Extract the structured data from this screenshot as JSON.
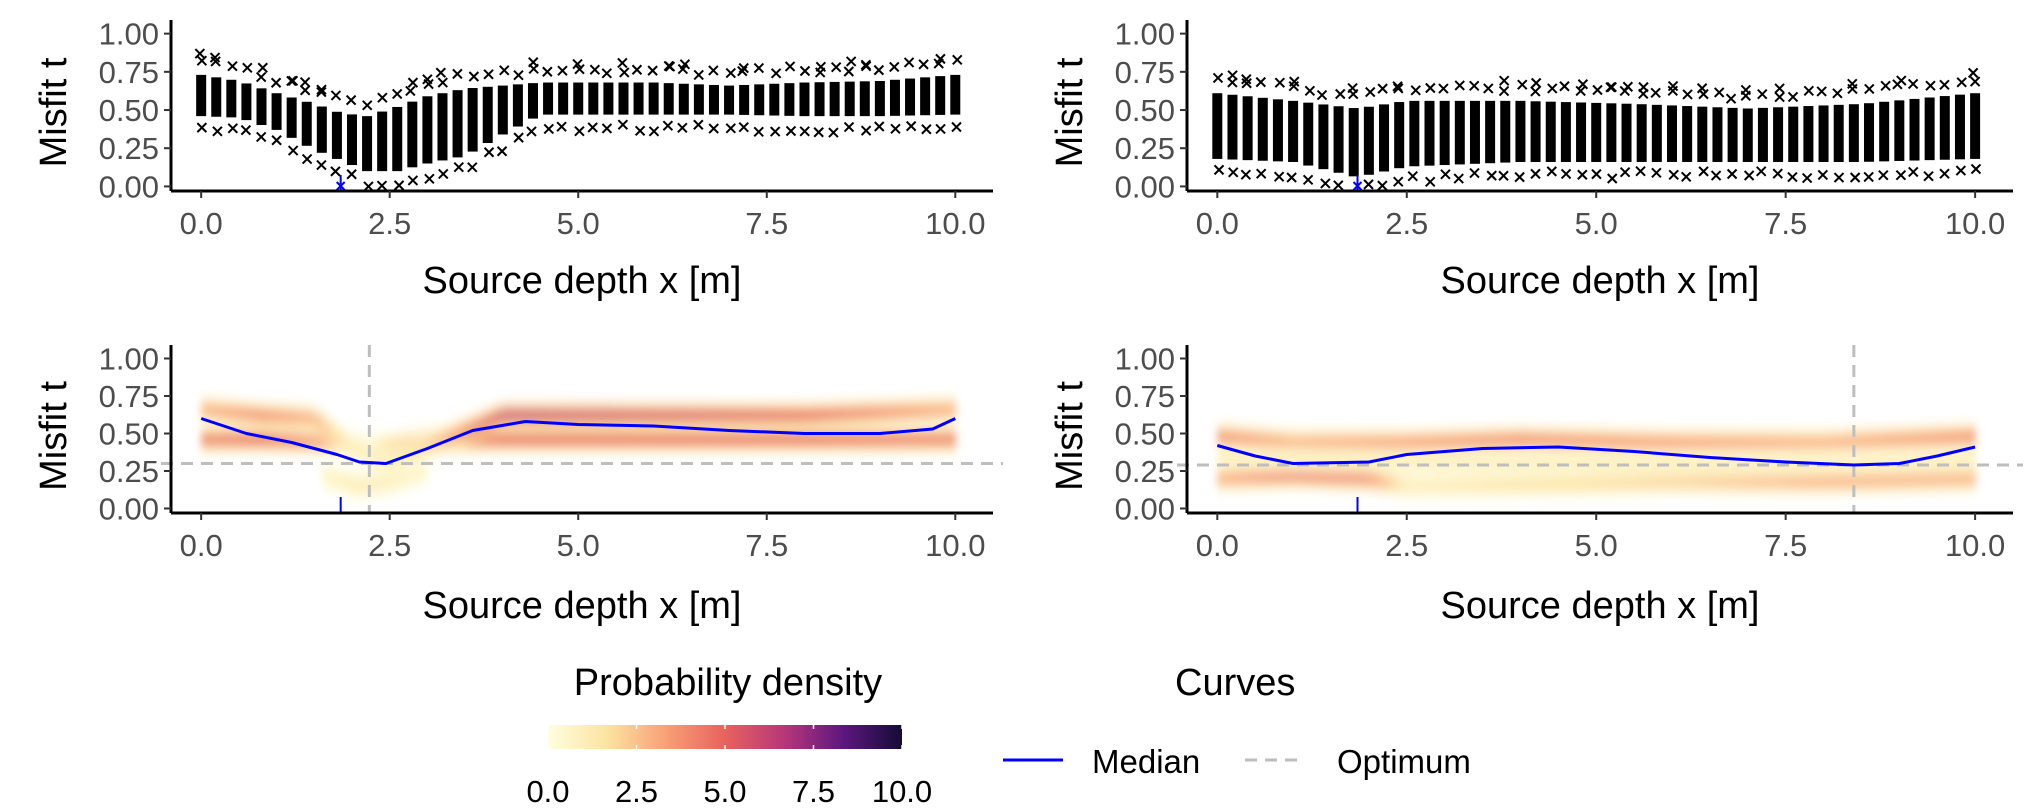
{
  "colors": {
    "axis": "#000000",
    "tick_label": "#4d4d4d",
    "median": "#0000ff",
    "optimum": "#bebebe",
    "marker": "#000000",
    "density_stops": [
      "#fffee0",
      "#fce3a2",
      "#f8a076",
      "#e8625e",
      "#b73779",
      "#5d177f",
      "#150b37"
    ]
  },
  "chart_data": [
    {
      "id": "top-left",
      "type": "scatter",
      "xlabel": "Source depth x [m]",
      "ylabel": "Misfit t",
      "xlim": [
        -0.4,
        10.5
      ],
      "ylim": [
        -0.03,
        1.05
      ],
      "xticks": [
        "0.0",
        "2.5",
        "5.0",
        "7.5",
        "10.0"
      ],
      "yticks": [
        "0.00",
        "0.25",
        "0.50",
        "0.75",
        "1.00"
      ],
      "true_source_x": 1.85,
      "profile": {
        "x": [
          0,
          0.5,
          1.0,
          1.5,
          1.85,
          2.2,
          2.6,
          3.0,
          3.5,
          4.0,
          4.5,
          5.0,
          6.0,
          7.0,
          8.0,
          9.0,
          10.0
        ],
        "low": [
          0.42,
          0.41,
          0.33,
          0.2,
          0.13,
          0.06,
          0.06,
          0.11,
          0.16,
          0.3,
          0.43,
          0.43,
          0.43,
          0.43,
          0.42,
          0.42,
          0.43
        ],
        "high": [
          0.77,
          0.73,
          0.65,
          0.58,
          0.52,
          0.5,
          0.56,
          0.63,
          0.68,
          0.7,
          0.72,
          0.72,
          0.72,
          0.7,
          0.72,
          0.73,
          0.77
        ]
      }
    },
    {
      "id": "top-right",
      "type": "scatter",
      "xlabel": "Source depth x [m]",
      "ylabel": "Misfit t",
      "xlim": [
        -0.4,
        10.5
      ],
      "ylim": [
        -0.03,
        1.05
      ],
      "xticks": [
        "0.0",
        "2.5",
        "5.0",
        "7.5",
        "10.0"
      ],
      "yticks": [
        "0.00",
        "0.25",
        "0.50",
        "0.75",
        "1.00"
      ],
      "true_source_x": 1.85,
      "profile": {
        "x": [
          0,
          1.0,
          1.85,
          2.5,
          4.0,
          5.5,
          7.0,
          8.5,
          10.0
        ],
        "low": [
          0.14,
          0.12,
          0.02,
          0.09,
          0.12,
          0.12,
          0.12,
          0.12,
          0.14
        ],
        "high": [
          0.65,
          0.6,
          0.55,
          0.6,
          0.6,
          0.58,
          0.55,
          0.58,
          0.65
        ]
      }
    },
    {
      "id": "bottom-left",
      "type": "heatmap",
      "xlabel": "Source depth x [m]",
      "ylabel": "Misfit t",
      "xlim": [
        -0.4,
        10.5
      ],
      "ylim": [
        -0.03,
        1.05
      ],
      "xticks": [
        "0.0",
        "2.5",
        "5.0",
        "7.5",
        "10.0"
      ],
      "yticks": [
        "0.00",
        "0.25",
        "0.50",
        "0.75",
        "1.00"
      ],
      "true_source_x": 1.85,
      "optimum": {
        "x": 2.23,
        "t": 0.3
      },
      "median": {
        "x": [
          0,
          0.6,
          1.2,
          1.8,
          2.1,
          2.45,
          3.0,
          3.6,
          4.3,
          5.0,
          6.0,
          7.0,
          8.0,
          9.0,
          9.7,
          10.0
        ],
        "y": [
          0.6,
          0.5,
          0.44,
          0.36,
          0.31,
          0.3,
          0.4,
          0.52,
          0.58,
          0.56,
          0.55,
          0.52,
          0.5,
          0.5,
          0.53,
          0.6
        ]
      },
      "bands": [
        {
          "x": [
            0,
            0.8,
            1.8,
            2.2,
            3.0,
            4.0,
            6.0,
            8.0,
            10.0
          ],
          "t": [
            0.46,
            0.46,
            0.44,
            0.4,
            0.45,
            0.46,
            0.46,
            0.46,
            0.46
          ],
          "density": [
            4.5,
            5.0,
            3.0,
            1.0,
            3.0,
            5.0,
            5.0,
            5.0,
            4.5
          ]
        },
        {
          "x": [
            0,
            0.8,
            1.5,
            2.0,
            2.5,
            3.0,
            4.0,
            6.0,
            8.0,
            10.0
          ],
          "t": [
            0.66,
            0.62,
            0.6,
            0.4,
            0.3,
            0.42,
            0.62,
            0.62,
            0.62,
            0.66
          ],
          "density": [
            3.0,
            4.0,
            3.0,
            1.0,
            1.0,
            2.0,
            6.0,
            5.5,
            5.0,
            3.0
          ]
        },
        {
          "x": [
            1.6,
            2.1,
            2.5,
            3.0
          ],
          "t": [
            0.22,
            0.15,
            0.18,
            0.25
          ],
          "density": [
            0.6,
            1.2,
            1.0,
            0.5
          ]
        }
      ]
    },
    {
      "id": "bottom-right",
      "type": "heatmap",
      "xlabel": "Source depth x [m]",
      "ylabel": "Misfit t",
      "xlim": [
        -0.4,
        10.5
      ],
      "ylim": [
        -0.03,
        1.05
      ],
      "xticks": [
        "0.0",
        "2.5",
        "5.0",
        "7.5",
        "10.0"
      ],
      "yticks": [
        "0.00",
        "0.25",
        "0.50",
        "0.75",
        "1.00"
      ],
      "true_source_x": 1.85,
      "optimum": {
        "x": 8.4,
        "t": 0.29
      },
      "median": {
        "x": [
          0,
          0.5,
          1.0,
          2.0,
          2.5,
          3.5,
          4.5,
          5.5,
          6.5,
          7.5,
          8.4,
          9.0,
          9.5,
          10.0
        ],
        "y": [
          0.42,
          0.35,
          0.3,
          0.31,
          0.36,
          0.4,
          0.41,
          0.38,
          0.34,
          0.31,
          0.29,
          0.3,
          0.35,
          0.41
        ]
      },
      "bands": [
        {
          "x": [
            0,
            1.0,
            2.5,
            4.0,
            6.0,
            8.0,
            10.0
          ],
          "t": [
            0.48,
            0.44,
            0.44,
            0.46,
            0.44,
            0.44,
            0.48
          ],
          "density": [
            4.0,
            3.0,
            3.5,
            4.0,
            3.5,
            3.0,
            4.0
          ]
        },
        {
          "x": [
            0,
            1.0,
            2.0,
            2.5,
            4.0,
            6.0,
            8.0,
            10.0
          ],
          "t": [
            0.2,
            0.22,
            0.2,
            0.15,
            0.16,
            0.18,
            0.18,
            0.2
          ],
          "density": [
            3.0,
            4.5,
            4.0,
            1.0,
            1.5,
            2.0,
            3.0,
            3.0
          ]
        },
        {
          "x": [
            0,
            2.0,
            4.0,
            6.0,
            8.0,
            10.0
          ],
          "t": [
            0.33,
            0.32,
            0.3,
            0.3,
            0.3,
            0.32
          ],
          "density": [
            1.0,
            1.0,
            1.0,
            1.0,
            1.0,
            1.0
          ]
        }
      ]
    }
  ],
  "legend": {
    "density": {
      "title": "Probability density",
      "ticks": [
        "0.0",
        "2.5",
        "5.0",
        "7.5",
        "10.0"
      ],
      "range": [
        0,
        10
      ]
    },
    "curves": {
      "title": "Curves",
      "items": [
        {
          "label": "Median",
          "style": "solid"
        },
        {
          "label": "Optimum",
          "style": "dashed"
        }
      ]
    }
  }
}
